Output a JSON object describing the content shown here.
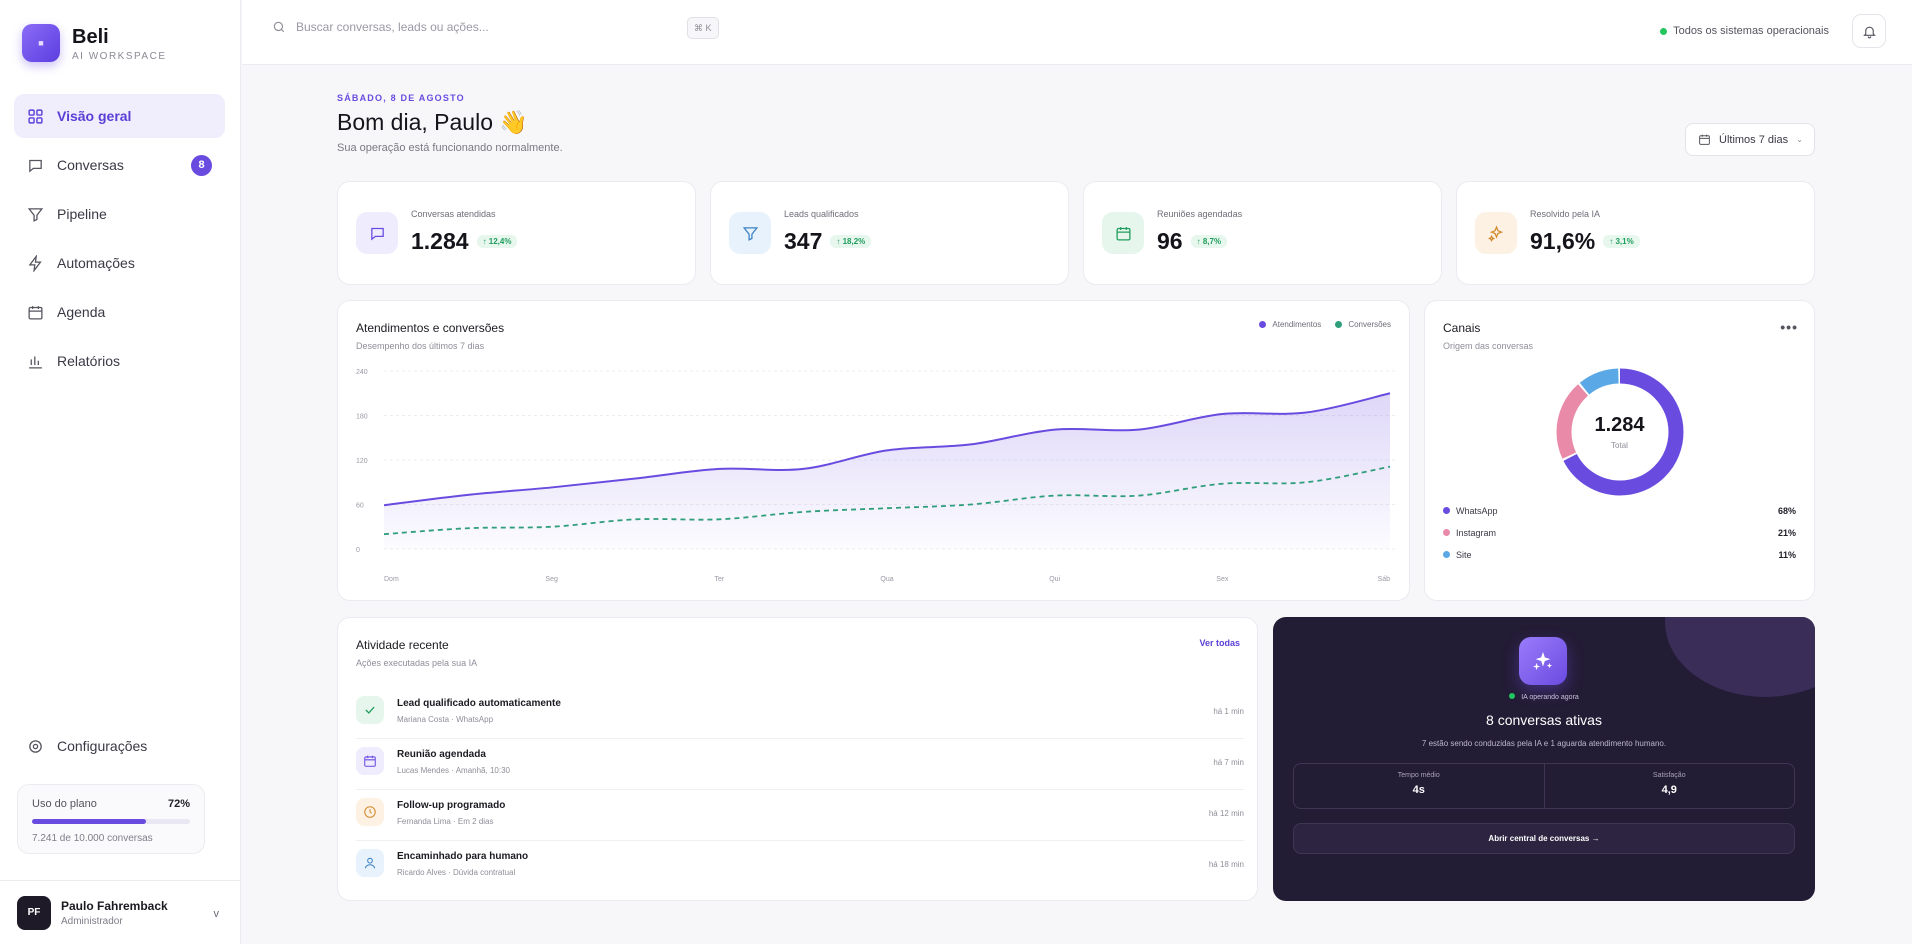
{
  "sidebar": {
    "brand_name": "Beli",
    "brand_sub": "AI WORKSPACE",
    "items": [
      {
        "label": "Visão geral",
        "icon": "grid-icon"
      },
      {
        "label": "Conversas",
        "icon": "chat-icon",
        "badge": "8"
      },
      {
        "label": "Pipeline",
        "icon": "funnel-icon"
      },
      {
        "label": "Automações",
        "icon": "bolt-icon"
      },
      {
        "label": "Agenda",
        "icon": "calendar-icon"
      },
      {
        "label": "Relatórios",
        "icon": "bar-chart-icon"
      }
    ],
    "settings_label": "Configurações",
    "plan": {
      "label": "Uso do plano",
      "percent": "72%",
      "fraction": 0.7241,
      "usage": "7.241 de 10.000 conversas"
    },
    "user": {
      "initials": "PF",
      "name": "Paulo Fahremback",
      "role": "Administrador",
      "chevron": "v"
    }
  },
  "topbar": {
    "search_placeholder": "Buscar conversas, leads ou ações...",
    "shortcut": "⌘ K",
    "status": "Todos os sistemas operacionais"
  },
  "greeting": {
    "date": "SÁBADO, 8 DE AGOSTO",
    "title": "Bom dia, Paulo 👋",
    "subtitle": "Sua operação está funcionando normalmente.",
    "range": "Últimos 7 dias"
  },
  "kpis": [
    {
      "label": "Conversas atendidas",
      "value": "1.284",
      "delta": "↑ 12,4%",
      "icon": "chat-icon",
      "color": "#6a4be0",
      "bg": "#efecfd"
    },
    {
      "label": "Leads qualificados",
      "value": "347",
      "delta": "↑ 18,2%",
      "icon": "funnel-icon",
      "color": "#3b82c4",
      "bg": "#e8f2fc"
    },
    {
      "label": "Reuniões agendadas",
      "value": "96",
      "delta": "↑ 8,7%",
      "icon": "calendar-icon",
      "color": "#1f9d5c",
      "bg": "#e6f6ed"
    },
    {
      "label": "Resolvido pela IA",
      "value": "91,6%",
      "delta": "↑ 3,1%",
      "icon": "sparkle-icon",
      "color": "#d38a2e",
      "bg": "#fdf1e3"
    }
  ],
  "chart_data": {
    "type": "area",
    "title": "Atendimentos e conversões",
    "subtitle": "Desempenho dos últimos 7 dias",
    "categories": [
      "Dom",
      "Seg",
      "Ter",
      "Qua",
      "Qui",
      "Sex",
      "Sáb"
    ],
    "yticks": [
      0,
      60,
      120,
      180,
      240
    ],
    "ylim": [
      0,
      240
    ],
    "grid": true,
    "legend_position": "top-right",
    "series": [
      {
        "name": "Atendimentos",
        "color": "#6a4be0",
        "x": [
          0,
          0.5,
          1,
          1.5,
          2,
          2.5,
          3,
          3.5,
          4,
          4.5,
          5,
          5.5,
          6
        ],
        "values": [
          59,
          73,
          83,
          95,
          108,
          108,
          133,
          141,
          161,
          161,
          182,
          184,
          210
        ]
      },
      {
        "name": "Conversões",
        "color": "#2f9e7a",
        "x": [
          0,
          0.5,
          1,
          1.5,
          2,
          2.5,
          3,
          3.5,
          4,
          4.5,
          5,
          5.5,
          6
        ],
        "values": [
          20,
          28,
          30,
          40,
          40,
          50,
          55,
          60,
          72,
          72,
          88,
          90,
          111
        ]
      }
    ]
  },
  "channels": {
    "title": "Canais",
    "subtitle": "Origem das conversas",
    "more": "•••",
    "total": "1.284",
    "total_label": "Total",
    "items": [
      {
        "name": "WhatsApp",
        "percent": "68%",
        "value": 68,
        "color": "#6a4be0"
      },
      {
        "name": "Instagram",
        "percent": "21%",
        "value": 21,
        "color": "#e98aa9"
      },
      {
        "name": "Site",
        "percent": "11%",
        "value": 11,
        "color": "#5aa9e6"
      }
    ]
  },
  "activity": {
    "title": "Atividade recente",
    "subtitle": "Ações executadas pela sua IA",
    "link": "Ver todas",
    "items": [
      {
        "title": "Lead qualificado automaticamente",
        "sub": "Mariana Costa · WhatsApp",
        "time": "há 1 min",
        "icon": "check-icon",
        "color": "#1f9d5c",
        "bg": "#e6f6ed"
      },
      {
        "title": "Reunião agendada",
        "sub": "Lucas Mendes · Amanhã, 10:30",
        "time": "há 7 min",
        "icon": "calendar-icon",
        "color": "#6a4be0",
        "bg": "#efecfd"
      },
      {
        "title": "Follow-up programado",
        "sub": "Fernanda Lima · Em 2 dias",
        "time": "há 12 min",
        "icon": "clock-icon",
        "color": "#d38a2e",
        "bg": "#fdf1e3"
      },
      {
        "title": "Encaminhado para humano",
        "sub": "Ricardo Alves · Dúvida contratual",
        "time": "há 18 min",
        "icon": "user-icon",
        "color": "#3b82c4",
        "bg": "#e8f2fc"
      }
    ]
  },
  "ai_panel": {
    "status": "IA operando agora",
    "title": "8 conversas ativas",
    "subtitle": "7 estão sendo conduzidas pela IA e 1 aguarda atendimento humano.",
    "stats": [
      {
        "label": "Tempo médio",
        "value": "4s"
      },
      {
        "label": "Satisfação",
        "value": "4,9"
      }
    ],
    "button": "Abrir central de conversas  →"
  }
}
